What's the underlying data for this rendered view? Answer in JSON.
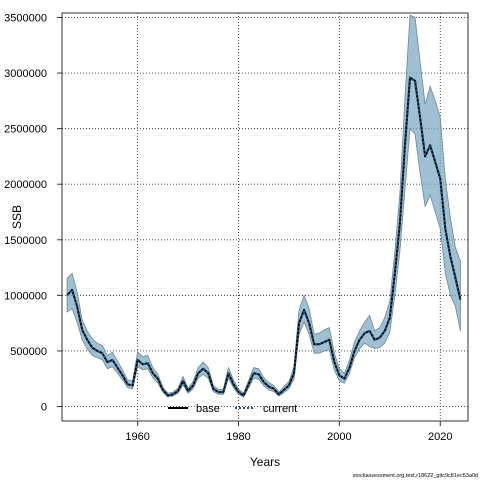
{
  "chart_data": {
    "type": "line",
    "xlabel": "Years",
    "ylabel": "SSB",
    "xlim": [
      1945,
      2025.5
    ],
    "ylim": [
      -130000,
      3540000
    ],
    "x_ticks": [
      1960,
      1980,
      2000,
      2020
    ],
    "y_ticks": [
      0,
      500000,
      1000000,
      1500000,
      2000000,
      2500000,
      3000000,
      3500000
    ],
    "grid": true,
    "legend_position": "bottom-center",
    "colors": {
      "base": "#000000",
      "current": "#1a5580",
      "band_fill": "#7fa9c4",
      "band_stroke": "#6e8797",
      "grid": "#333333"
    },
    "series": [
      {
        "name": "base",
        "x": [
          1946,
          1947,
          1948,
          1949,
          1950,
          1951,
          1952,
          1953,
          1954,
          1955,
          1956,
          1957,
          1958,
          1959,
          1960,
          1961,
          1962,
          1963,
          1964,
          1965,
          1966,
          1967,
          1968,
          1969,
          1970,
          1971,
          1972,
          1973,
          1974,
          1975,
          1976,
          1977,
          1978,
          1979,
          1980,
          1981,
          1982,
          1983,
          1984,
          1985,
          1986,
          1987,
          1988,
          1989,
          1990,
          1991,
          1992,
          1993,
          1994,
          1995,
          1996,
          1997,
          1998,
          1999,
          2000,
          2001,
          2002,
          2003,
          2004,
          2005,
          2006,
          2007,
          2008,
          2009,
          2010,
          2011,
          2012,
          2013,
          2014,
          2015,
          2016,
          2017,
          2018,
          2019,
          2020,
          2021,
          2022,
          2023,
          2024
        ],
        "values": [
          1000000,
          1050000,
          900000,
          690000,
          600000,
          530000,
          500000,
          480000,
          400000,
          420000,
          350000,
          280000,
          200000,
          190000,
          420000,
          380000,
          390000,
          300000,
          250000,
          150000,
          100000,
          110000,
          140000,
          230000,
          140000,
          190000,
          300000,
          340000,
          300000,
          160000,
          130000,
          130000,
          300000,
          200000,
          130000,
          100000,
          200000,
          300000,
          290000,
          220000,
          180000,
          160000,
          110000,
          150000,
          190000,
          300000,
          750000,
          870000,
          750000,
          560000,
          560000,
          580000,
          600000,
          400000,
          280000,
          250000,
          350000,
          500000,
          600000,
          660000,
          680000,
          600000,
          620000,
          680000,
          800000,
          1200000,
          1650000,
          2350000,
          2960000,
          2930000,
          2600000,
          2250000,
          2350000,
          2200000,
          2050000,
          1600000,
          1350000,
          1160000,
          960000
        ]
      },
      {
        "name": "current",
        "x": [
          1946,
          1947,
          1948,
          1949,
          1950,
          1951,
          1952,
          1953,
          1954,
          1955,
          1956,
          1957,
          1958,
          1959,
          1960,
          1961,
          1962,
          1963,
          1964,
          1965,
          1966,
          1967,
          1968,
          1969,
          1970,
          1971,
          1972,
          1973,
          1974,
          1975,
          1976,
          1977,
          1978,
          1979,
          1980,
          1981,
          1982,
          1983,
          1984,
          1985,
          1986,
          1987,
          1988,
          1989,
          1990,
          1991,
          1992,
          1993,
          1994,
          1995,
          1996,
          1997,
          1998,
          1999,
          2000,
          2001,
          2002,
          2003,
          2004,
          2005,
          2006,
          2007,
          2008,
          2009,
          2010,
          2011,
          2012,
          2013,
          2014,
          2015,
          2016,
          2017,
          2018,
          2019,
          2020,
          2021,
          2022,
          2023,
          2024
        ],
        "values": [
          1000000,
          1050000,
          900000,
          690000,
          600000,
          530000,
          500000,
          480000,
          400000,
          420000,
          350000,
          280000,
          200000,
          190000,
          420000,
          380000,
          390000,
          300000,
          250000,
          150000,
          100000,
          110000,
          140000,
          230000,
          140000,
          190000,
          300000,
          340000,
          300000,
          160000,
          130000,
          130000,
          300000,
          200000,
          130000,
          100000,
          200000,
          300000,
          290000,
          220000,
          180000,
          160000,
          110000,
          150000,
          190000,
          300000,
          750000,
          870000,
          750000,
          560000,
          560000,
          580000,
          600000,
          400000,
          280000,
          250000,
          350000,
          500000,
          600000,
          660000,
          680000,
          600000,
          620000,
          680000,
          800000,
          1200000,
          1650000,
          2350000,
          2960000,
          2930000,
          2600000,
          2250000,
          2350000,
          2200000,
          2050000,
          1600000,
          1350000,
          1160000,
          960000
        ],
        "lower": [
          850000,
          880000,
          760000,
          600000,
          520000,
          460000,
          440000,
          420000,
          340000,
          360000,
          300000,
          240000,
          170000,
          160000,
          360000,
          330000,
          340000,
          260000,
          210000,
          130000,
          85000,
          95000,
          120000,
          195000,
          120000,
          160000,
          255000,
          290000,
          255000,
          135000,
          110000,
          110000,
          255000,
          170000,
          110000,
          85000,
          170000,
          255000,
          245000,
          185000,
          150000,
          135000,
          95000,
          125000,
          160000,
          250000,
          650000,
          760000,
          650000,
          480000,
          480000,
          500000,
          510000,
          330000,
          230000,
          210000,
          300000,
          440000,
          520000,
          570000,
          540000,
          520000,
          530000,
          570000,
          670000,
          1000000,
          1400000,
          1950000,
          2500000,
          2450000,
          2100000,
          1800000,
          1900000,
          1750000,
          1600000,
          1200000,
          1000000,
          900000,
          680000
        ],
        "upper": [
          1150000,
          1200000,
          1030000,
          780000,
          680000,
          610000,
          570000,
          550000,
          460000,
          490000,
          410000,
          330000,
          240000,
          230000,
          490000,
          450000,
          460000,
          350000,
          290000,
          175000,
          120000,
          130000,
          165000,
          270000,
          165000,
          225000,
          350000,
          400000,
          350000,
          190000,
          155000,
          155000,
          350000,
          240000,
          155000,
          120000,
          235000,
          350000,
          340000,
          260000,
          215000,
          190000,
          130000,
          180000,
          225000,
          360000,
          870000,
          1000000,
          880000,
          650000,
          660000,
          690000,
          710000,
          480000,
          340000,
          300000,
          420000,
          580000,
          680000,
          760000,
          820000,
          680000,
          710000,
          800000,
          950000,
          1400000,
          1920000,
          2780000,
          3520000,
          3500000,
          3100000,
          2720000,
          2880000,
          2750000,
          2600000,
          2050000,
          1700000,
          1430000,
          1310000
        ]
      }
    ]
  },
  "legend": {
    "base_label": "base",
    "current_label": "current"
  },
  "footer": {
    "credit": "stockassessment.org,test,r18622_gitc9c81ec53a0d"
  }
}
